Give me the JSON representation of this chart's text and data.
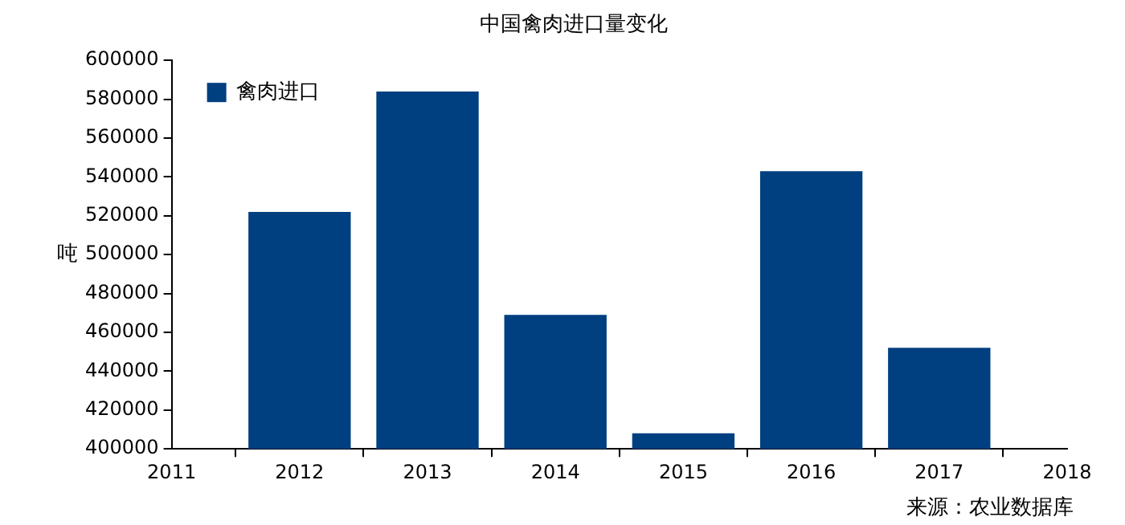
{
  "chart_data": {
    "type": "bar",
    "title": "中国禽肉进口量变化",
    "ylabel": "吨",
    "x": [
      2012,
      2013,
      2014,
      2015,
      2016,
      2017
    ],
    "xlim": [
      2011,
      2018
    ],
    "xticks": [
      2011,
      2012,
      2013,
      2014,
      2015,
      2016,
      2017,
      2018
    ],
    "ylim": [
      400000,
      600000
    ],
    "yticks": [
      400000,
      420000,
      440000,
      460000,
      480000,
      500000,
      520000,
      540000,
      560000,
      580000,
      600000
    ],
    "series": [
      {
        "name": "禽肉进口",
        "color": "#003f80",
        "values": [
          522000,
          584000,
          469000,
          408000,
          543000,
          452000
        ]
      }
    ],
    "legend": "top left",
    "grid": false,
    "annotations": [
      "来源：农业数据库"
    ]
  }
}
